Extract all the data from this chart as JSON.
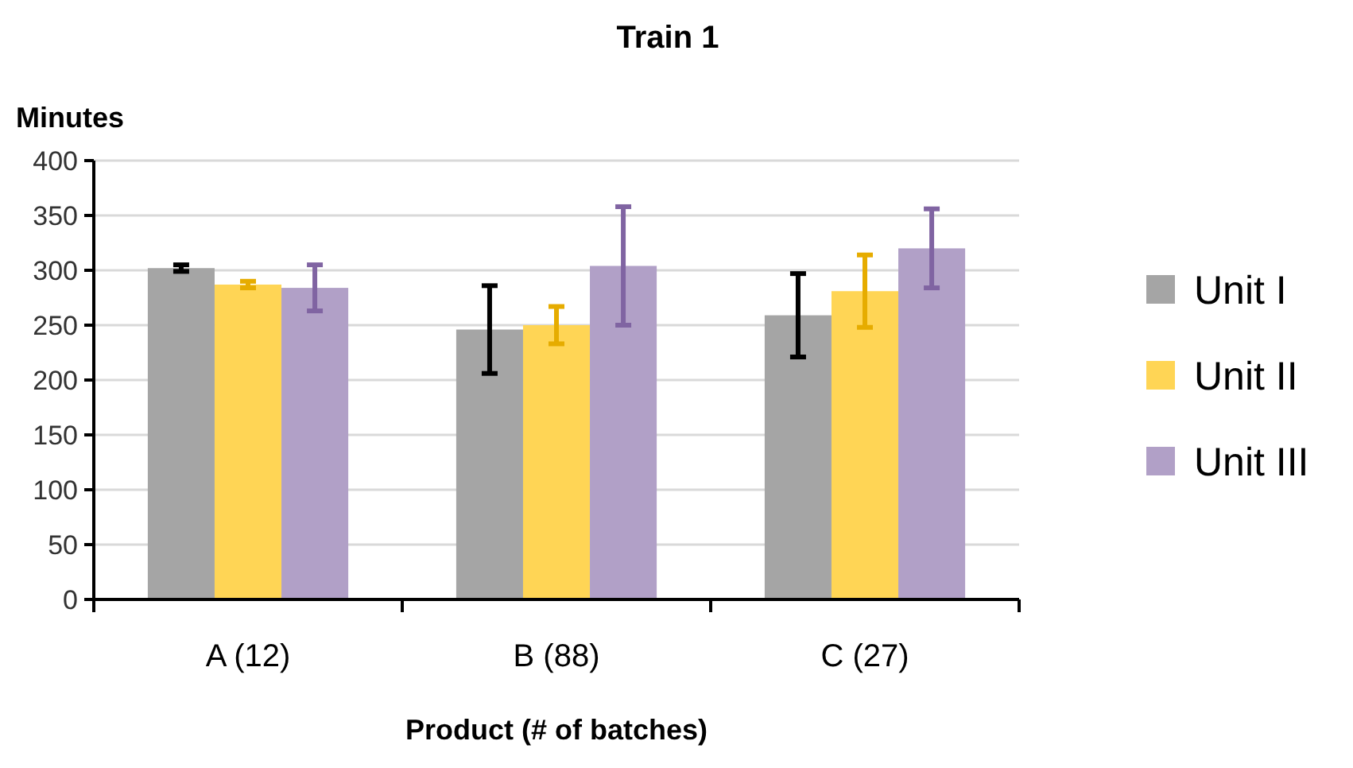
{
  "chart_data": {
    "type": "bar",
    "title": "Train 1",
    "xlabel": "Product (# of batches)",
    "ylabel": "Minutes",
    "categories": [
      "A (12)",
      "B (88)",
      "C (27)"
    ],
    "series": [
      {
        "name": "Unit I",
        "color": "#a5a5a5",
        "values": [
          302,
          246,
          259
        ],
        "errors": [
          3,
          40,
          38
        ]
      },
      {
        "name": "Unit II",
        "color": "#ffd555",
        "values": [
          287,
          250,
          281
        ],
        "errors": [
          3,
          17,
          33
        ]
      },
      {
        "name": "Unit III",
        "color": "#b1a0c7",
        "values": [
          284,
          304,
          320
        ],
        "errors": [
          21,
          54,
          36
        ]
      }
    ],
    "ylim": [
      0,
      400
    ],
    "yticks": [
      0,
      50,
      100,
      150,
      200,
      250,
      300,
      350,
      400
    ],
    "grid": "y",
    "legend": "right"
  }
}
